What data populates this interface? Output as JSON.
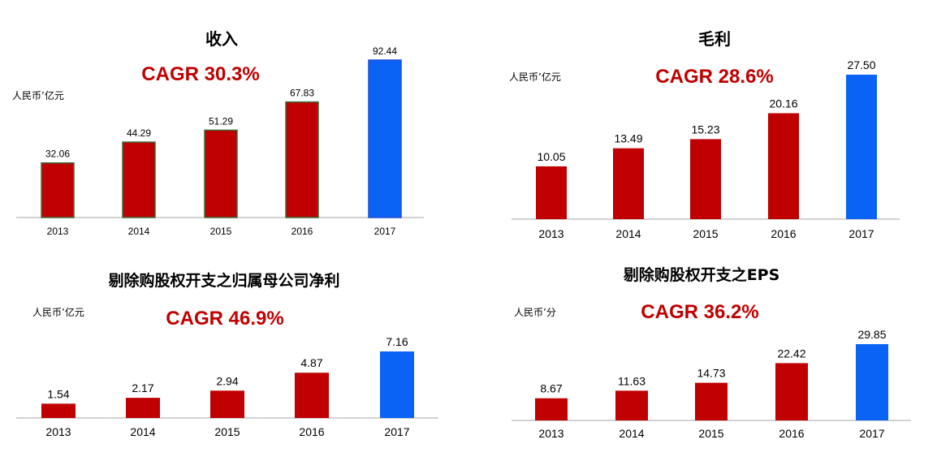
{
  "colors": {
    "bar": "#c00000",
    "highlight": "#0a63f5",
    "cagr": "#c00000",
    "axis": "#a6a6a6"
  },
  "chart_data": [
    {
      "type": "bar",
      "title": "收入",
      "cagr": "CAGR  30.3%",
      "unit": "人民币’亿元",
      "categories": [
        "2013",
        "2014",
        "2015",
        "2016",
        "2017"
      ],
      "values": [
        32.06,
        44.29,
        51.29,
        67.83,
        92.44
      ],
      "labels": [
        "32.06",
        "44.29",
        "51.29",
        "67.83",
        "92.44"
      ],
      "highlight_index": 4
    },
    {
      "type": "bar",
      "title": "毛利",
      "cagr": "CAGR  28.6%",
      "unit": "人民币’亿元",
      "categories": [
        "2013",
        "2014",
        "2015",
        "2016",
        "2017"
      ],
      "values": [
        10.05,
        13.49,
        15.23,
        20.16,
        27.5
      ],
      "labels": [
        "10.05",
        "13.49",
        "15.23",
        "20.16",
        "27.50"
      ],
      "highlight_index": 4
    },
    {
      "type": "bar",
      "title": "剔除购股权开支之归属母公司净利",
      "cagr": "CAGR  46.9%",
      "unit": "人民币’亿元",
      "categories": [
        "2013",
        "2014",
        "2015",
        "2016",
        "2017"
      ],
      "values": [
        1.54,
        2.17,
        2.94,
        4.87,
        7.16
      ],
      "labels": [
        "1.54",
        "2.17",
        "2.94",
        "4.87",
        "7.16"
      ],
      "highlight_index": 4
    },
    {
      "type": "bar",
      "title": "剔除购股权开支之EPS",
      "cagr": "CAGR 36.2%",
      "unit": "人民币’分",
      "categories": [
        "2013",
        "2014",
        "2015",
        "2016",
        "2017"
      ],
      "values": [
        8.67,
        11.63,
        14.73,
        22.42,
        29.85
      ],
      "labels": [
        "8.67",
        "11.63",
        "14.73",
        "22.42",
        "29.85"
      ],
      "highlight_index": 4
    }
  ]
}
